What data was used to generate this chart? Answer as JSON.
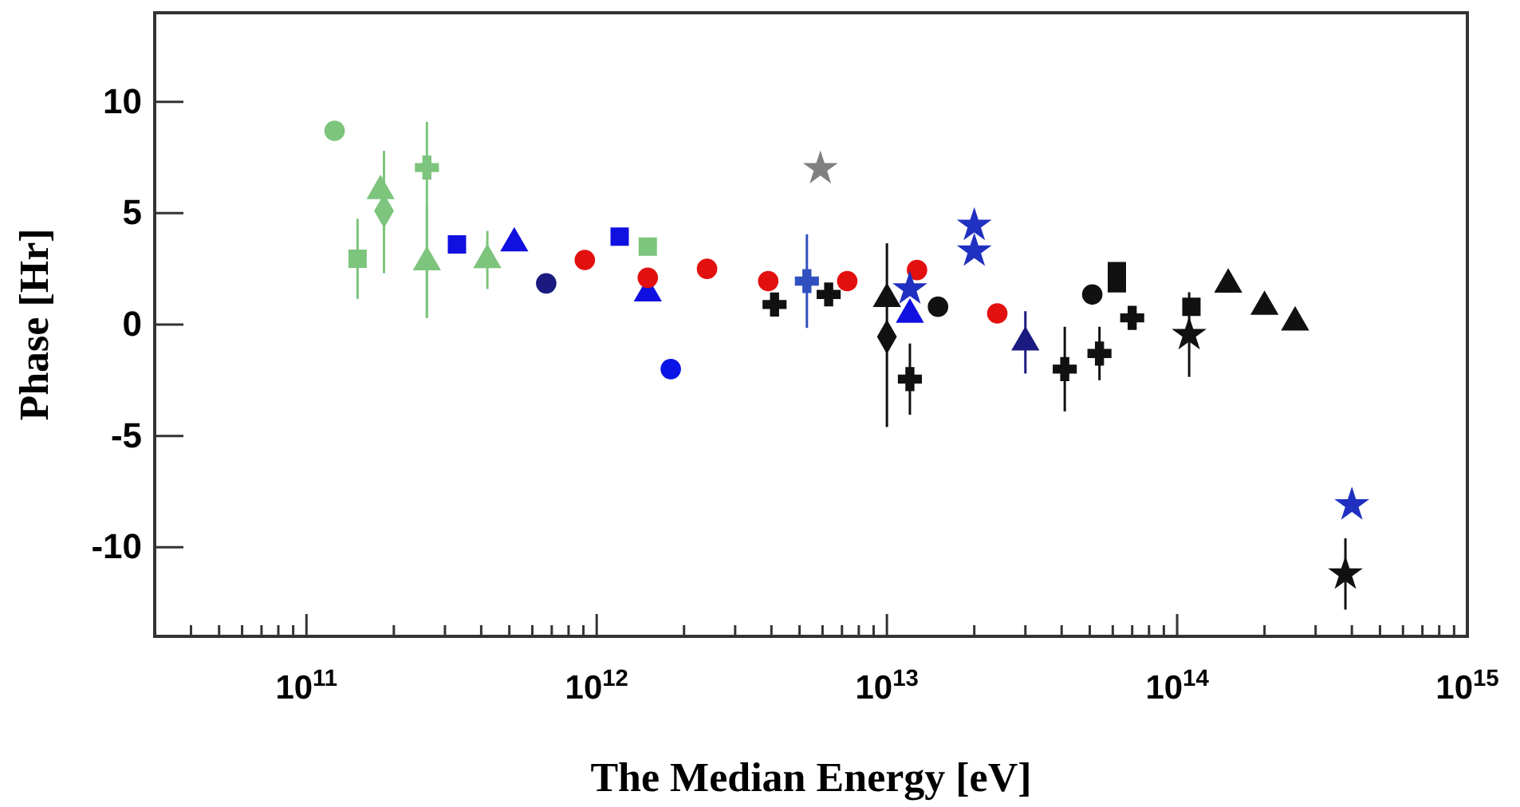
{
  "chart_data": {
    "type": "scatter",
    "xlabel": "The Median Energy [eV]",
    "ylabel": "Phase [Hr]",
    "log": "x",
    "xlim": [
      30000000000.0,
      1000000000000000.0
    ],
    "ylim": [
      -14,
      14
    ],
    "xticks": [
      {
        "value": 40000000000.0,
        "label": null
      },
      {
        "value": 50000000000.0,
        "label": null
      },
      {
        "value": 60000000000.0,
        "label": null
      },
      {
        "value": 70000000000.0,
        "label": null
      },
      {
        "value": 80000000000.0,
        "label": null
      },
      {
        "value": 90000000000.0,
        "label": null
      },
      {
        "value": 100000000000.0,
        "label": "10$^{11}$"
      },
      {
        "value": 200000000000.0,
        "label": null
      },
      {
        "value": 300000000000.0,
        "label": null
      },
      {
        "value": 400000000000.0,
        "label": null
      },
      {
        "value": 500000000000.0,
        "label": null
      },
      {
        "value": 600000000000.0,
        "label": null
      },
      {
        "value": 700000000000.0,
        "label": null
      },
      {
        "value": 800000000000.0,
        "label": null
      },
      {
        "value": 900000000000.0,
        "label": null
      },
      {
        "value": 1000000000000.0,
        "label": "10$^{12}$"
      },
      {
        "value": 2000000000000.0,
        "label": null
      },
      {
        "value": 3000000000000.0,
        "label": null
      },
      {
        "value": 4000000000000.0,
        "label": null
      },
      {
        "value": 5000000000000.0,
        "label": null
      },
      {
        "value": 6000000000000.0,
        "label": null
      },
      {
        "value": 7000000000000.0,
        "label": null
      },
      {
        "value": 8000000000000.0,
        "label": null
      },
      {
        "value": 9000000000000.0,
        "label": null
      },
      {
        "value": 10000000000000.0,
        "label": "10$^{13}$"
      },
      {
        "value": 20000000000000.0,
        "label": null
      },
      {
        "value": 30000000000000.0,
        "label": null
      },
      {
        "value": 40000000000000.0,
        "label": null
      },
      {
        "value": 50000000000000.0,
        "label": null
      },
      {
        "value": 60000000000000.0,
        "label": null
      },
      {
        "value": 70000000000000.0,
        "label": null
      },
      {
        "value": 80000000000000.0,
        "label": null
      },
      {
        "value": 90000000000000.0,
        "label": null
      },
      {
        "value": 100000000000000.0,
        "label": "10$^{14}$"
      },
      {
        "value": 200000000000000.0,
        "label": null
      },
      {
        "value": 300000000000000.0,
        "label": null
      },
      {
        "value": 400000000000000.0,
        "label": null
      },
      {
        "value": 500000000000000.0,
        "label": null
      },
      {
        "value": 600000000000000.0,
        "label": null
      },
      {
        "value": 700000000000000.0,
        "label": null
      },
      {
        "value": 800000000000000.0,
        "label": null
      },
      {
        "value": 900000000000000.0,
        "label": null
      },
      {
        "value": 1000000000000000.0,
        "label": "10$^{15}$"
      }
    ],
    "yticks": [
      -10,
      -5,
      0,
      5,
      10
    ],
    "series": [
      {
        "color": "#7dc47d",
        "marker": "circle",
        "x": [
          125000000000.0
        ],
        "values": [
          8.7
        ]
      },
      {
        "color": "#7dc47d",
        "marker": "square",
        "x": [
          150000000000.0,
          1500000000000.0
        ],
        "values": [
          2.95,
          3.5
        ],
        "errors": [
          1.8,
          null
        ]
      },
      {
        "color": "#7dc47d",
        "marker": "triangle",
        "x": [
          180000000000.0,
          260000000000.0,
          420000000000.0
        ],
        "values": [
          6.0,
          2.8,
          2.9
        ],
        "errors": [
          null,
          2.5,
          1.3
        ]
      },
      {
        "color": "#7dc47d",
        "marker": "diamond",
        "x": [
          185000000000.0
        ],
        "values": [
          5.1
        ],
        "errors": [
          [
            2.3,
            7.8
          ]
        ]
      },
      {
        "color": "#7dc47d",
        "marker": "cross",
        "x": [
          260000000000.0
        ],
        "values": [
          7.05
        ],
        "errors": [
          [
            0.3,
            9.1
          ]
        ]
      },
      {
        "color": "#1010e0",
        "marker": "square",
        "x": [
          330000000000.0,
          1200000000000.0
        ],
        "values": [
          3.6,
          3.95
        ]
      },
      {
        "color": "#1010e0",
        "marker": "triangle",
        "x": [
          520000000000.0,
          1500000000000.0,
          12000000000000.0
        ],
        "values": [
          3.65,
          1.4,
          0.45
        ]
      },
      {
        "color": "#1a1a80",
        "marker": "circle",
        "x": [
          670000000000.0
        ],
        "values": [
          1.85
        ]
      },
      {
        "color": "#0a14e6",
        "marker": "circle",
        "x": [
          1800000000000.0
        ],
        "values": [
          -2.0
        ]
      },
      {
        "color": "#e31010",
        "marker": "circle",
        "x": [
          910000000000.0,
          1500000000000.0,
          2400000000000.0,
          3900000000000.0,
          7300000000000.0,
          12700000000000.0,
          24000000000000.0
        ],
        "values": [
          2.9,
          2.1,
          2.5,
          1.95,
          1.95,
          2.45,
          0.5
        ]
      },
      {
        "color": "#3050c0",
        "marker": "cross",
        "x": [
          5300000000000.0
        ],
        "values": [
          1.95
        ],
        "errors": [
          2.1
        ]
      },
      {
        "color": "#111111",
        "marker": "cross",
        "x": [
          4100000000000.0,
          6300000000000.0,
          12000000000000.0,
          41000000000000.0,
          54000000000000.0,
          70000000000000.0
        ],
        "values": [
          0.9,
          1.35,
          -2.45,
          -2.0,
          -1.3,
          0.3
        ],
        "errors": [
          null,
          null,
          1.6,
          1.9,
          1.2,
          null
        ]
      },
      {
        "color": "#808080",
        "marker": "star",
        "x": [
          5900000000000.0
        ],
        "values": [
          7.0
        ]
      },
      {
        "color": "#111111",
        "marker": "triangle",
        "x": [
          10000000000000.0,
          150000000000000.0,
          200000000000000.0,
          255000000000000.0
        ],
        "values": [
          1.15,
          1.8,
          0.8,
          0.1
        ]
      },
      {
        "color": "#111111",
        "marker": "diamond",
        "x": [
          10000000000000.0
        ],
        "values": [
          -0.55
        ],
        "errors": [
          [
            -4.6,
            3.65
          ]
        ]
      },
      {
        "color": "#2030c0",
        "marker": "star",
        "x": [
          12000000000000.0,
          20000000000000.0,
          20000000000000.0,
          400000000000000.0
        ],
        "values": [
          1.6,
          4.45,
          3.3,
          -8.1
        ]
      },
      {
        "color": "#111111",
        "marker": "circle",
        "x": [
          15000000000000.0,
          51000000000000.0
        ],
        "values": [
          0.8,
          1.35
        ]
      },
      {
        "color": "#1a1a80",
        "marker": "triangle",
        "x": [
          30000000000000.0
        ],
        "values": [
          -0.8
        ],
        "errors": [
          1.4
        ]
      },
      {
        "color": "#111111",
        "marker": "square",
        "x": [
          62000000000000.0,
          62000000000000.0,
          112000000000000.0
        ],
        "values": [
          1.85,
          2.4,
          0.8
        ]
      },
      {
        "color": "#111111",
        "marker": "star",
        "x": [
          110000000000000.0,
          380000000000000.0
        ],
        "values": [
          -0.45,
          -11.2
        ],
        "errors": [
          1.9,
          1.6
        ]
      }
    ]
  }
}
